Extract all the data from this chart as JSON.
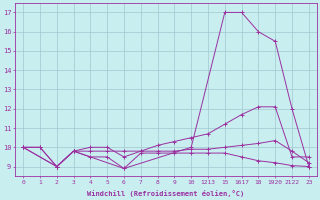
{
  "xlabel": "Windchill (Refroidissement éolien,°C)",
  "background_color": "#c8eef0",
  "line_color": "#9b30a0",
  "grid_color": "#a0c8d0",
  "x_labels": [
    "0",
    "1",
    "2",
    "3",
    "4",
    "5",
    "6",
    "7",
    "8",
    "9",
    "10",
    "1213",
    "15",
    "1617",
    "18",
    "1920",
    "2122",
    "23"
  ],
  "ylim": [
    8.5,
    17.5
  ],
  "yticks": [
    9,
    10,
    11,
    12,
    13,
    14,
    15,
    16,
    17
  ],
  "lines": [
    {
      "x": [
        0,
        1,
        2,
        3,
        4,
        5,
        6,
        7,
        8,
        9,
        10,
        11,
        12,
        13,
        14,
        15,
        16,
        17
      ],
      "y": [
        10.0,
        10.0,
        9.0,
        9.8,
        9.5,
        9.5,
        8.9,
        9.7,
        9.7,
        9.7,
        9.7,
        9.7,
        9.7,
        9.5,
        9.3,
        9.2,
        9.05,
        9.0
      ]
    },
    {
      "x": [
        0,
        1,
        2,
        3,
        4,
        5,
        6,
        7,
        8,
        9,
        10,
        11,
        12,
        13,
        14,
        15,
        16,
        17
      ],
      "y": [
        10.0,
        10.0,
        9.0,
        9.8,
        9.8,
        9.8,
        9.8,
        9.8,
        9.8,
        9.8,
        9.9,
        9.9,
        10.0,
        10.1,
        10.2,
        10.35,
        9.8,
        9.2
      ]
    },
    {
      "x": [
        0,
        2,
        3,
        4,
        5,
        6,
        7,
        8,
        9,
        10,
        11,
        12,
        13,
        14,
        15,
        16,
        17
      ],
      "y": [
        10.0,
        9.0,
        9.8,
        10.0,
        10.0,
        9.5,
        9.8,
        10.1,
        10.3,
        10.5,
        10.7,
        11.2,
        11.7,
        12.1,
        12.1,
        9.5,
        9.5
      ]
    },
    {
      "x": [
        0,
        2,
        3,
        6,
        10,
        12,
        13,
        14,
        15,
        16,
        17
      ],
      "y": [
        10.0,
        9.0,
        9.8,
        8.9,
        10.0,
        17.0,
        17.0,
        16.0,
        15.5,
        12.0,
        9.0
      ]
    }
  ]
}
